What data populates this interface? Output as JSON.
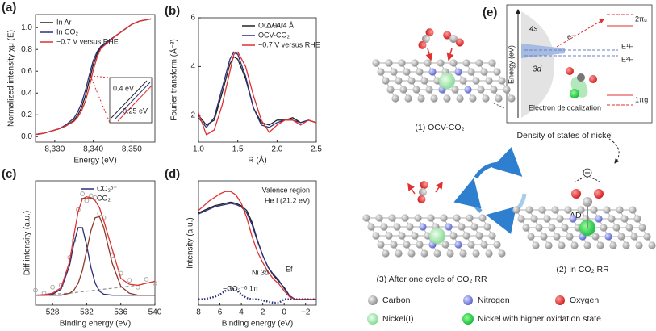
{
  "chart_data": [
    {
      "type": "line",
      "label": "(a)",
      "x_label": "Energy (eV)",
      "y_label": "Normalized intensity χμ (E)",
      "x": [
        8325,
        8327,
        8329,
        8331,
        8333,
        8335,
        8336,
        8337,
        8338,
        8339,
        8340,
        8341,
        8342,
        8344,
        8346,
        8348,
        8350,
        8352,
        8355
      ],
      "series": [
        {
          "name": "In Ar",
          "color": "#222222",
          "values": [
            0.02,
            0.03,
            0.05,
            0.07,
            0.1,
            0.15,
            0.2,
            0.27,
            0.38,
            0.52,
            0.66,
            0.76,
            0.82,
            0.88,
            0.93,
            0.98,
            1.03,
            1.06,
            1.08
          ]
        },
        {
          "name": "In CO₂",
          "color": "#2b2f7a",
          "values": [
            0.02,
            0.03,
            0.05,
            0.07,
            0.11,
            0.17,
            0.23,
            0.31,
            0.43,
            0.57,
            0.7,
            0.78,
            0.83,
            0.88,
            0.93,
            0.98,
            1.03,
            1.06,
            1.08
          ]
        },
        {
          "name": "−0.7 V versus RHE",
          "color": "#e03030",
          "values": [
            0.02,
            0.03,
            0.05,
            0.07,
            0.1,
            0.14,
            0.18,
            0.24,
            0.33,
            0.46,
            0.61,
            0.73,
            0.81,
            0.87,
            0.93,
            0.98,
            1.03,
            1.06,
            1.08
          ]
        }
      ],
      "xlim": [
        8325,
        8356
      ],
      "ylim": [
        -0.05,
        1.12
      ],
      "xticks": [
        {
          "value": 8330,
          "label": "8,330"
        },
        {
          "value": 8340,
          "label": "8,340"
        },
        {
          "value": 8350,
          "label": "8,350"
        }
      ],
      "yticks": [
        {
          "value": 0,
          "label": "0.0"
        },
        0.2,
        0.4,
        0.6,
        0.8,
        {
          "value": 1,
          "label": "1.0"
        }
      ],
      "legend": "upper left",
      "annotations": [
        "0.4 eV",
        "0.25 eV"
      ]
    },
    {
      "type": "line",
      "label": "(b)",
      "x_label": "R (Å)",
      "y_label": "Fourier transform (Å⁻³)",
      "x": [
        1.0,
        1.1,
        1.2,
        1.3,
        1.4,
        1.45,
        1.5,
        1.6,
        1.7,
        1.8,
        1.9,
        2.0,
        2.1,
        2.2,
        2.3,
        2.4,
        2.5
      ],
      "series": [
        {
          "name": "OCV-Ar",
          "color": "#222222",
          "values": [
            2.0,
            1.6,
            1.8,
            2.9,
            4.1,
            4.4,
            4.3,
            3.5,
            2.3,
            1.7,
            1.6,
            1.8,
            1.8,
            1.9,
            1.7,
            1.8,
            1.7
          ]
        },
        {
          "name": "OCV-CO₂",
          "color": "#2b2f7a",
          "values": [
            1.9,
            1.5,
            1.9,
            3.1,
            4.3,
            4.6,
            4.5,
            3.6,
            2.3,
            1.6,
            1.5,
            1.7,
            1.8,
            1.8,
            1.7,
            1.8,
            1.7
          ]
        },
        {
          "name": "−0.7 V versus RHE",
          "color": "#e03030",
          "values": [
            2.1,
            1.2,
            1.4,
            2.4,
            3.8,
            4.5,
            4.6,
            4.0,
            2.8,
            1.8,
            1.3,
            1.6,
            1.8,
            1.8,
            1.6,
            1.8,
            1.7
          ]
        }
      ],
      "xlim": [
        1,
        2.5
      ],
      "ylim": [
        0.9,
        6
      ],
      "xticks": [
        {
          "value": 1,
          "label": "1.0"
        },
        1.5,
        {
          "value": 2,
          "label": "2.0"
        },
        2.5
      ],
      "yticks": [
        2,
        4,
        6
      ],
      "legend": "upper right",
      "annotations": [
        "Δ 0.04 Å"
      ]
    },
    {
      "type": "line",
      "label": "(c)",
      "x_label": "Binding energy (eV)",
      "y_label": "Diff intensity (a.u.)",
      "x": [
        526,
        527,
        528,
        529,
        530,
        530.5,
        531,
        531.5,
        532,
        532.5,
        533,
        533.5,
        534,
        535,
        536,
        537,
        538,
        539,
        540
      ],
      "series": [
        {
          "color": "#aaaaaa",
          "style": "markers",
          "values": [
            0.05,
            0.02,
            0.08,
            0.1,
            0.38,
            0.55,
            0.86,
            1.02,
            0.95,
            1.0,
            0.98,
            0.82,
            0.78,
            0.4,
            0.22,
            0.15,
            0.08,
            0.16,
            0.12
          ]
        },
        {
          "color": "#999999",
          "style": "dashed",
          "values": [
            0,
            0.005,
            0.01,
            0.015,
            0.02,
            0.025,
            0.03,
            0.035,
            0.04,
            0.045,
            0.05,
            0.055,
            0.06,
            0.07,
            0.08,
            0.09,
            0.1,
            0.12,
            0.14
          ]
        },
        {
          "name": "CO₂ᵟ⁻",
          "color": "#2b2f7a",
          "values": [
            0,
            0,
            0.01,
            0.06,
            0.3,
            0.52,
            0.68,
            0.68,
            0.5,
            0.28,
            0.12,
            0.04,
            0.01,
            0,
            0,
            0,
            0,
            0,
            0
          ]
        },
        {
          "name": "CO₂",
          "color": "#8b3a2a",
          "values": [
            0,
            0,
            0,
            0,
            0.02,
            0.05,
            0.12,
            0.25,
            0.45,
            0.65,
            0.78,
            0.79,
            0.68,
            0.32,
            0.09,
            0.02,
            0,
            0,
            0
          ]
        },
        {
          "color": "#e03030",
          "values": [
            0,
            0.005,
            0.02,
            0.075,
            0.34,
            0.6,
            0.84,
            0.97,
            0.99,
            0.98,
            0.95,
            0.88,
            0.75,
            0.46,
            0.17,
            0.11,
            0.1,
            0.12,
            0.14
          ]
        }
      ],
      "xlim": [
        526,
        540
      ],
      "ylim": [
        -0.1,
        1.15
      ],
      "xticks": [
        528,
        532,
        536,
        540
      ],
      "legend": "upper right"
    },
    {
      "type": "line",
      "label": "(d)",
      "x_label": "Binding energy (eV)",
      "y_label": "Intensity (a.u.)",
      "x": [
        8,
        7.5,
        7,
        6.5,
        6,
        5.5,
        5,
        4.5,
        4,
        3.5,
        3,
        2.5,
        2,
        1.5,
        1,
        0.5,
        0,
        -0.5,
        -1,
        -2,
        -3
      ],
      "series": [
        {
          "color": "#222222",
          "values": [
            0.78,
            0.8,
            0.82,
            0.84,
            0.85,
            0.86,
            0.87,
            0.86,
            0.84,
            0.8,
            0.7,
            0.55,
            0.42,
            0.32,
            0.25,
            0.2,
            0.15,
            0.08,
            0.05,
            0.05,
            0.05
          ]
        },
        {
          "color": "#2b2f7a",
          "values": [
            0.77,
            0.79,
            0.81,
            0.83,
            0.84,
            0.85,
            0.86,
            0.85,
            0.83,
            0.78,
            0.68,
            0.54,
            0.42,
            0.32,
            0.26,
            0.21,
            0.14,
            0.08,
            0.05,
            0.05,
            0.05
          ]
        },
        {
          "color": "#e03030",
          "values": [
            0.8,
            0.84,
            0.88,
            0.91,
            0.94,
            0.96,
            0.96,
            0.93,
            0.86,
            0.74,
            0.58,
            0.45,
            0.36,
            0.28,
            0.22,
            0.18,
            0.12,
            0.07,
            0.05,
            0.05,
            0.05
          ]
        },
        {
          "color": "#2b2f7a",
          "style": "dotted",
          "values": [
            0.05,
            0.05,
            0.06,
            0.07,
            0.09,
            0.12,
            0.14,
            0.13,
            0.09,
            0.06,
            0.05,
            0.05,
            0.04,
            0.03,
            0.02,
            0.02,
            0.05,
            0.05,
            0.05,
            0.05,
            0.05
          ]
        }
      ],
      "xlim": [
        8,
        -3
      ],
      "ylim": [
        0,
        1.05
      ],
      "xticks": [
        8,
        6,
        4,
        2,
        0,
        {
          "value": -2,
          "label": "−2"
        }
      ],
      "annotations": [
        "Valence region",
        "He I (21.2 eV)",
        "Ef",
        "Ni 3d",
        "−CO₂⁻ᵟ 1π"
      ]
    }
  ],
  "diagram": {
    "label": "(e)",
    "states": [
      "(1) OCV-CO₂",
      "(2) In CO₂ RR",
      "(3) After one cycle of CO₂ RR"
    ],
    "energy_panel": {
      "y_label": "Energy (eV)",
      "x_label": "Density of states of nickel",
      "note": "Electron delocalization",
      "levels": [
        "4s",
        "3d",
        "e⁻",
        "2πᵤ",
        "E¹F",
        "E²F",
        "1πg"
      ]
    },
    "charge_label": "ΔD",
    "legend": [
      "Carbon",
      "Nitrogen",
      "Oxygen",
      "Nickel(I)",
      "Nickel with higher oxidation state"
    ]
  }
}
